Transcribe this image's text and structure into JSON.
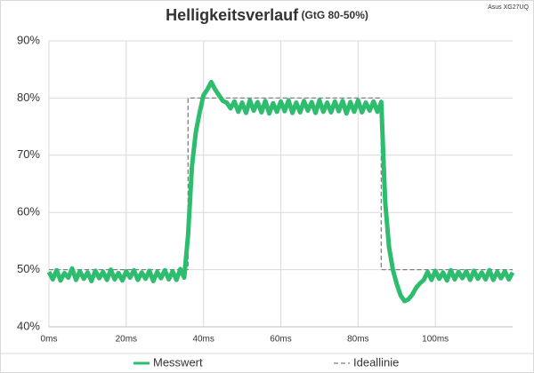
{
  "chart_data": {
    "type": "line",
    "title": "Helligkeitsverlauf",
    "subtitle": "(GtG 80-50%)",
    "annotation": "Asus XG27UQ",
    "xlim": [
      0,
      120
    ],
    "ylim": [
      40,
      90
    ],
    "xticks": [
      {
        "value": 0,
        "label": "0ms"
      },
      {
        "value": 20,
        "label": "20ms"
      },
      {
        "value": 40,
        "label": "40ms"
      },
      {
        "value": 60,
        "label": "60ms"
      },
      {
        "value": 80,
        "label": "80ms"
      },
      {
        "value": 100,
        "label": "100ms"
      }
    ],
    "yticks": [
      {
        "value": 40,
        "label": "40%"
      },
      {
        "value": 50,
        "label": "50%"
      },
      {
        "value": 60,
        "label": "60%"
      },
      {
        "value": 70,
        "label": "70%"
      },
      {
        "value": 80,
        "label": "80%"
      },
      {
        "value": 90,
        "label": "90%"
      }
    ],
    "grid": true,
    "legend": "bottom",
    "series": [
      {
        "name": "Messwert",
        "color": "#2ebd6e",
        "x": [
          0,
          1,
          2,
          3,
          4,
          5,
          6,
          7,
          8,
          9,
          10,
          11,
          12,
          13,
          14,
          15,
          16,
          17,
          18,
          19,
          20,
          21,
          22,
          23,
          24,
          25,
          26,
          27,
          28,
          29,
          30,
          31,
          32,
          33,
          34,
          35,
          36,
          37,
          38,
          39,
          40,
          41,
          42,
          43,
          44,
          45,
          46,
          47,
          48,
          49,
          50,
          51,
          52,
          53,
          54,
          55,
          56,
          57,
          58,
          59,
          60,
          61,
          62,
          63,
          64,
          65,
          66,
          67,
          68,
          69,
          70,
          71,
          72,
          73,
          74,
          75,
          76,
          77,
          78,
          79,
          80,
          81,
          82,
          83,
          84,
          85,
          86,
          87,
          88,
          89,
          90,
          91,
          92,
          93,
          94,
          95,
          96,
          97,
          98,
          99,
          100,
          101,
          102,
          103,
          104,
          105,
          106,
          107,
          108,
          109,
          110,
          111,
          112,
          113,
          114,
          115,
          116,
          117,
          118,
          119,
          120
        ],
        "values": [
          49.6,
          48.3,
          49.9,
          48.1,
          49.4,
          48.6,
          50.2,
          48.2,
          49.7,
          48.4,
          49.5,
          48.0,
          49.8,
          48.5,
          49.6,
          48.2,
          50.0,
          48.3,
          49.4,
          48.1,
          49.7,
          48.6,
          49.9,
          48.2,
          49.5,
          48.4,
          49.8,
          48.0,
          49.6,
          48.5,
          49.9,
          48.3,
          49.7,
          48.2,
          50.1,
          48.6,
          56,
          68,
          74,
          77.5,
          80.5,
          81.5,
          82.8,
          81.5,
          80.5,
          79.5,
          79.2,
          78.2,
          79.4,
          77.6,
          79.2,
          77.4,
          79.6,
          77.8,
          79.3,
          77.5,
          79.5,
          77.3,
          79.1,
          77.6,
          79.4,
          77.7,
          79.6,
          77.4,
          79.2,
          77.5,
          79.5,
          77.8,
          79.3,
          77.4,
          79.6,
          77.6,
          79.2,
          77.5,
          79.4,
          77.7,
          79.5,
          77.3,
          79.3,
          77.6,
          79.6,
          77.5,
          79.2,
          77.8,
          79.4,
          77.6,
          79.3,
          62,
          54,
          50,
          47.5,
          45.5,
          44.5,
          44.8,
          45.6,
          46.8,
          47.6,
          48.2,
          49.6,
          48.2,
          49.8,
          48.4,
          49.5,
          48.1,
          49.9,
          48.3,
          49.6,
          48.5,
          49.7,
          48.2,
          49.8,
          48.4,
          49.5,
          48.3,
          49.9,
          48.2,
          49.6,
          48.5,
          49.7,
          48.3,
          49.5
        ]
      },
      {
        "name": "Ideallinie",
        "color": "#808080",
        "dashed": true,
        "x": [
          0,
          36,
          36,
          86,
          86,
          120
        ],
        "values": [
          50,
          50,
          80,
          80,
          50,
          50
        ]
      }
    ]
  }
}
